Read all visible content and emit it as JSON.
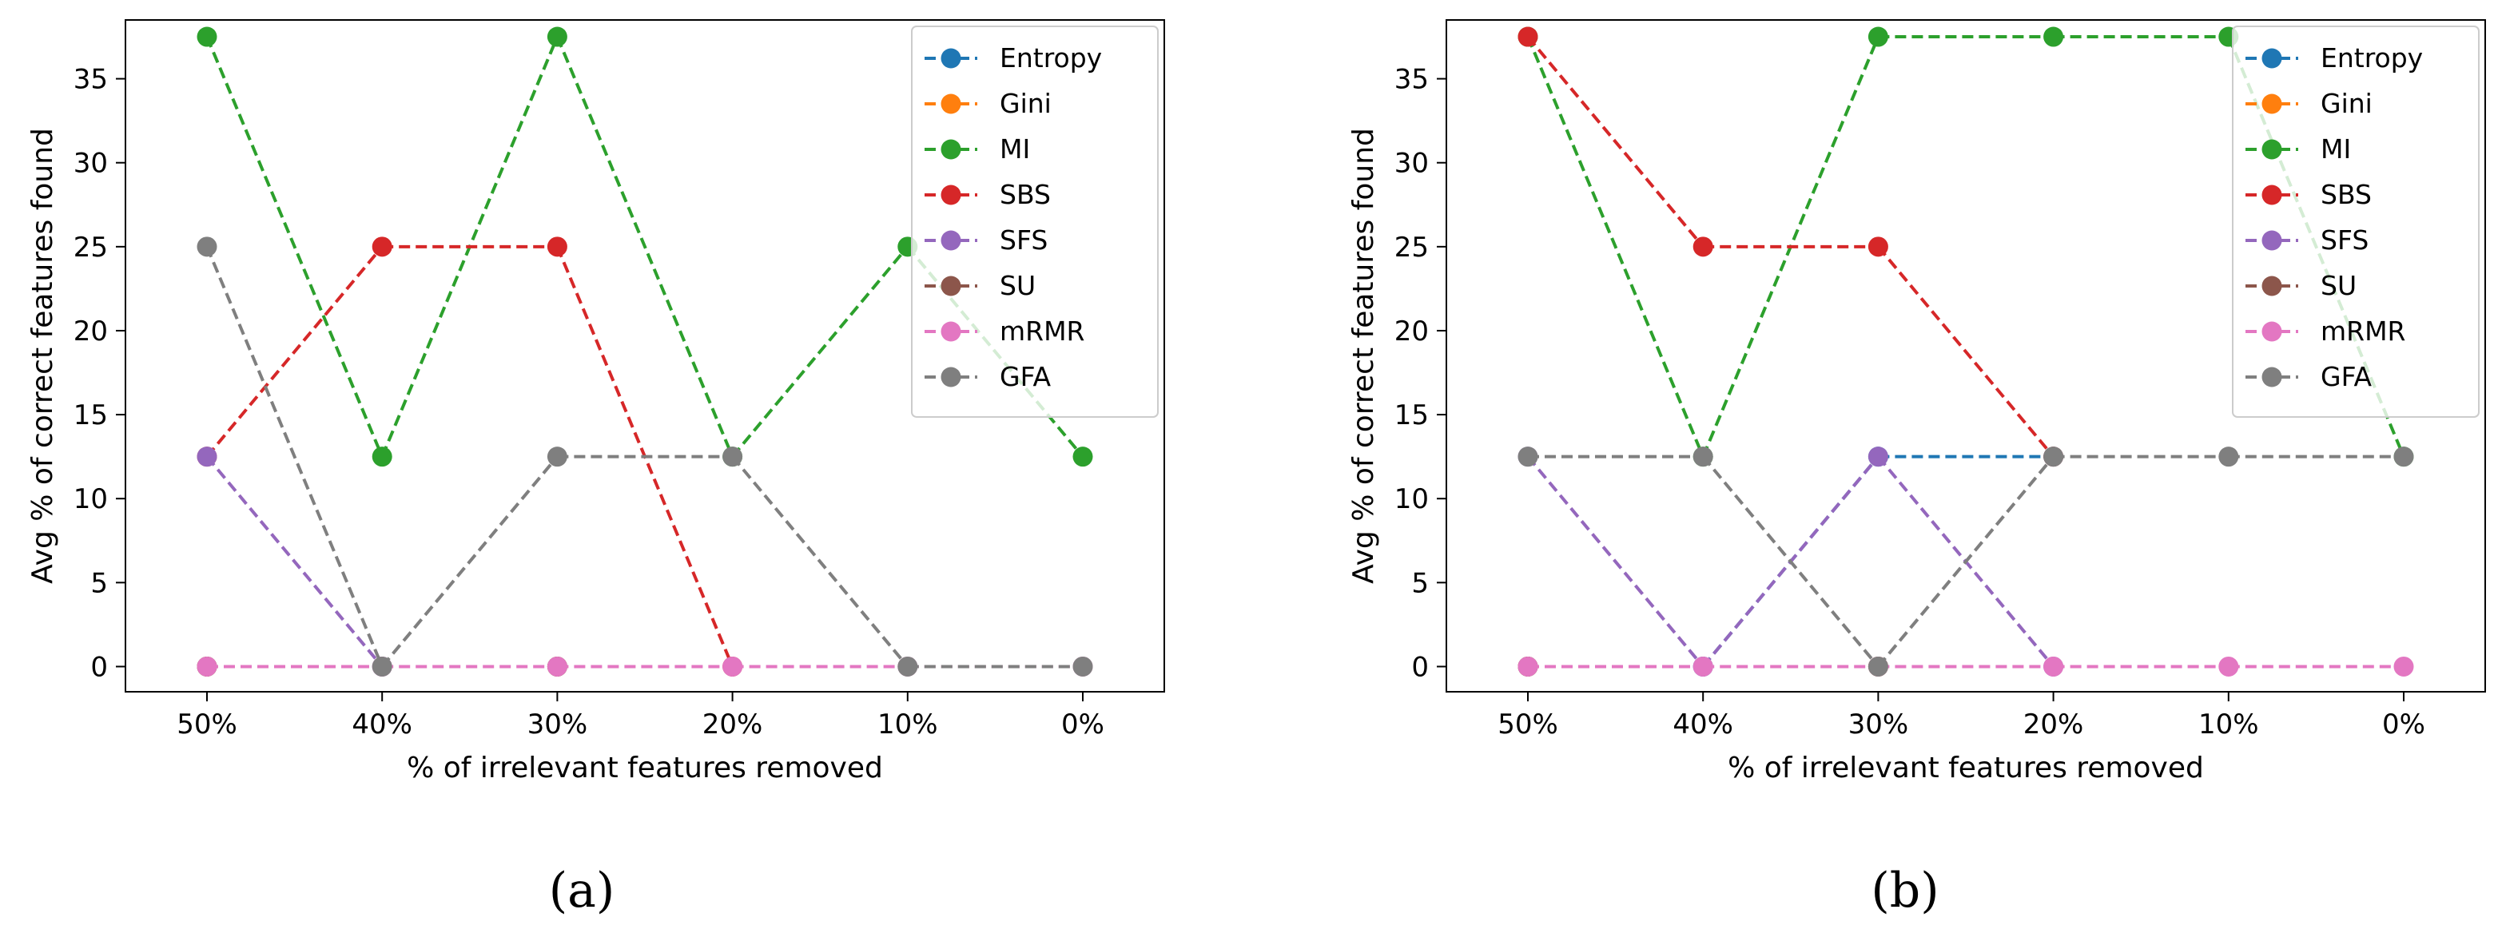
{
  "chart_data": [
    {
      "type": "line",
      "caption": "(a)",
      "xlabel": "% of irrelevant features removed",
      "ylabel": "Avg % of correct features found",
      "categories": [
        "50%",
        "40%",
        "30%",
        "20%",
        "10%",
        "0%"
      ],
      "ylim": [
        -1.5,
        38.5
      ],
      "yticks": [
        0,
        5,
        10,
        15,
        20,
        25,
        30,
        35
      ],
      "legend_position": "top-right",
      "series": [
        {
          "name": "Entropy",
          "color": "#1f77b4",
          "values": [
            0,
            null,
            0,
            null,
            null,
            null
          ]
        },
        {
          "name": "Gini",
          "color": "#ff7f0e",
          "values": [
            0,
            null,
            0,
            null,
            null,
            null
          ]
        },
        {
          "name": "MI",
          "color": "#2ca02c",
          "values": [
            37.5,
            12.5,
            37.5,
            12.5,
            25,
            12.5
          ]
        },
        {
          "name": "SBS",
          "color": "#d62728",
          "values": [
            12.5,
            25,
            25,
            0,
            null,
            null
          ]
        },
        {
          "name": "SFS",
          "color": "#9467bd",
          "values": [
            12.5,
            0,
            null,
            null,
            null,
            null
          ]
        },
        {
          "name": "SU",
          "color": "#8c564b",
          "values": [
            0,
            null,
            0,
            null,
            null,
            null
          ]
        },
        {
          "name": "mRMR",
          "color": "#e377c2",
          "values": [
            0,
            0,
            0,
            0,
            0,
            0
          ]
        },
        {
          "name": "GFA",
          "color": "#7f7f7f",
          "values": [
            25,
            0,
            12.5,
            12.5,
            0,
            0
          ]
        }
      ]
    },
    {
      "type": "line",
      "caption": "(b)",
      "xlabel": "% of irrelevant features removed",
      "ylabel": "Avg % of correct features found",
      "categories": [
        "50%",
        "40%",
        "30%",
        "20%",
        "10%",
        "0%"
      ],
      "ylim": [
        -1.5,
        38.5
      ],
      "yticks": [
        0,
        5,
        10,
        15,
        20,
        25,
        30,
        35
      ],
      "legend_position": "top-right",
      "series": [
        {
          "name": "Entropy",
          "color": "#1f77b4",
          "values": [
            0,
            0,
            12.5,
            12.5,
            null,
            null
          ]
        },
        {
          "name": "Gini",
          "color": "#ff7f0e",
          "values": [
            0,
            null,
            0,
            null,
            null,
            null
          ]
        },
        {
          "name": "MI",
          "color": "#2ca02c",
          "values": [
            37.5,
            12.5,
            37.5,
            37.5,
            37.5,
            12.5
          ]
        },
        {
          "name": "SBS",
          "color": "#d62728",
          "values": [
            37.5,
            25,
            25,
            12.5,
            null,
            null
          ]
        },
        {
          "name": "SFS",
          "color": "#9467bd",
          "values": [
            12.5,
            0,
            12.5,
            0,
            null,
            null
          ]
        },
        {
          "name": "SU",
          "color": "#8c564b",
          "values": [
            0,
            null,
            0,
            null,
            null,
            null
          ]
        },
        {
          "name": "mRMR",
          "color": "#e377c2",
          "values": [
            0,
            0,
            0,
            0,
            0,
            0
          ]
        },
        {
          "name": "GFA",
          "color": "#7f7f7f",
          "values": [
            12.5,
            12.5,
            0,
            12.5,
            12.5,
            12.5
          ]
        }
      ]
    }
  ]
}
